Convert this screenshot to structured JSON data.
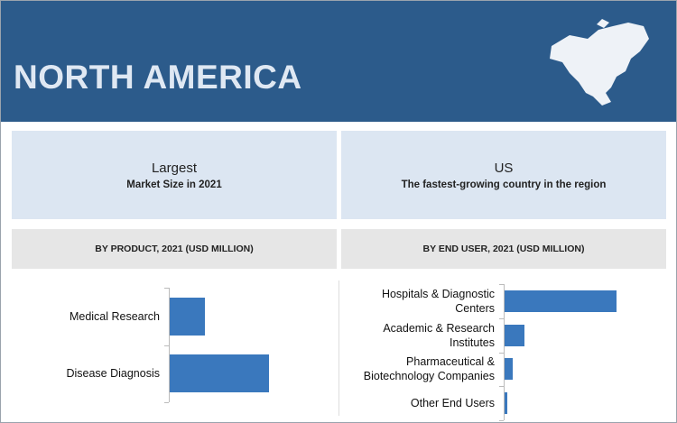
{
  "header": {
    "title": "NORTH AMERICA"
  },
  "cards": [
    {
      "title": "Largest",
      "subtitle": "Market Size in 2021"
    },
    {
      "title": "US",
      "subtitle": "The fastest-growing country in the region"
    }
  ],
  "chart_data": [
    {
      "type": "bar",
      "orientation": "horizontal",
      "title": "BY PRODUCT, 2021 (USD MILLION)",
      "categories": [
        "Medical Research",
        "Disease Diagnosis"
      ],
      "values": [
        35,
        100
      ],
      "color": "#3a78bd"
    },
    {
      "type": "bar",
      "orientation": "horizontal",
      "title": "BY END USER, 2021 (USD MILLION)",
      "categories": [
        "Hospitals & Diagnostic Centers",
        "Academic & Research Institutes",
        "Pharmaceutical & Biotechnology Companies",
        "Other End Users"
      ],
      "values": [
        113,
        20,
        8,
        3
      ],
      "color": "#3a78bd"
    }
  ]
}
